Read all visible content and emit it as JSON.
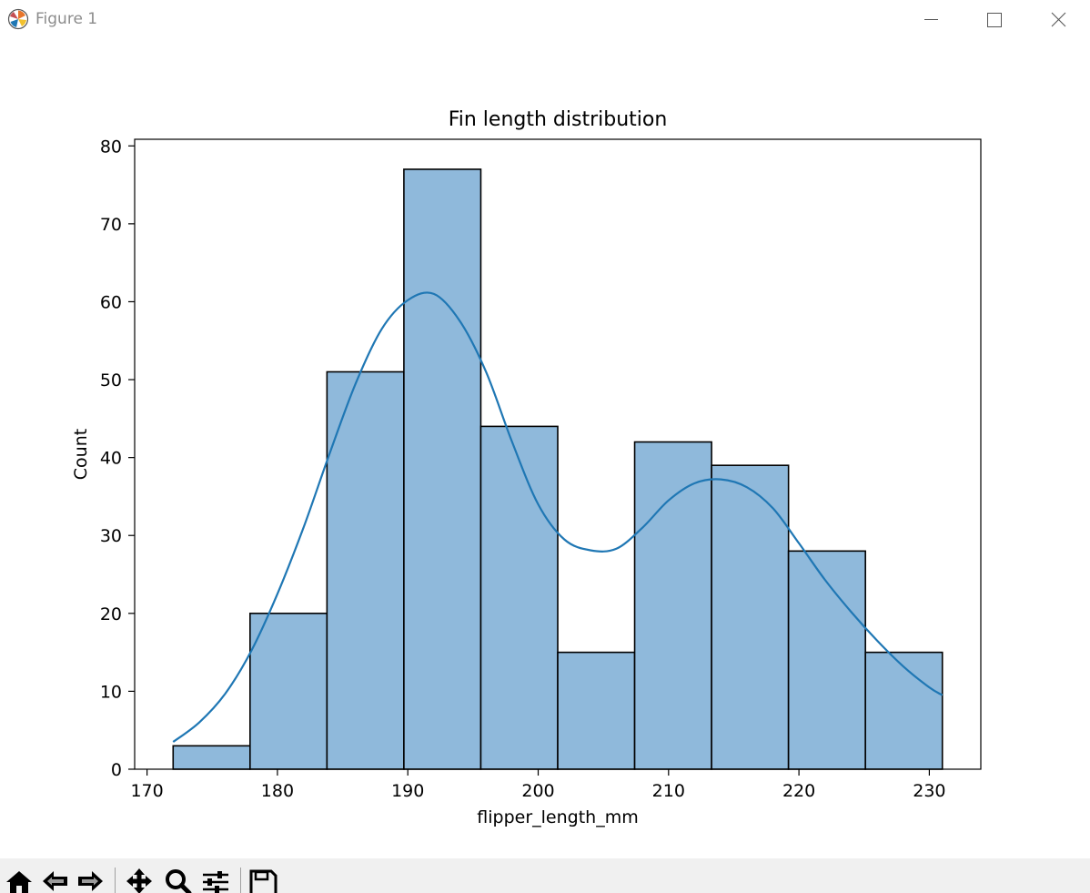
{
  "window": {
    "title": "Figure 1",
    "icon": "matplotlib-icon",
    "controls": [
      "minimize-icon",
      "maximize-icon",
      "close-icon"
    ]
  },
  "toolbar": {
    "tools": [
      "home-icon",
      "back-arrow-icon",
      "forward-arrow-icon",
      "pan-icon",
      "zoom-icon",
      "configure-subplots-icon",
      "save-icon"
    ]
  },
  "chart_data": {
    "type": "bar",
    "title": "Fin length distribution",
    "xlabel": "flipper_length_mm",
    "ylabel": "Count",
    "xlim": [
      169.05,
      233.95
    ],
    "ylim": [
      0,
      80.85
    ],
    "xticks": [
      170,
      180,
      190,
      200,
      210,
      220,
      230
    ],
    "yticks": [
      0,
      10,
      20,
      30,
      40,
      50,
      60,
      70,
      80
    ],
    "bin_edges": [
      172,
      177.9,
      183.8,
      189.7,
      195.6,
      201.5,
      207.4,
      213.3,
      219.2,
      225.1,
      231
    ],
    "counts": [
      3,
      20,
      51,
      77,
      44,
      15,
      42,
      39,
      28,
      15
    ],
    "bar_color": "#8fb9db",
    "edge_color": "#000000",
    "kde": {
      "color": "#1f77b4",
      "x": [
        172,
        174,
        176,
        178,
        180,
        182,
        184,
        186,
        188,
        190,
        192,
        194,
        196,
        198,
        200,
        202,
        204,
        206,
        208,
        210,
        212,
        214,
        216,
        218,
        220,
        222,
        224,
        226,
        228,
        230,
        231
      ],
      "y": [
        3.5,
        6.0,
        9.7,
        15.2,
        22.5,
        31.0,
        40.5,
        49.5,
        56.5,
        60.2,
        61.0,
        57.5,
        51.0,
        42.0,
        34.0,
        29.5,
        28.1,
        28.3,
        31.0,
        34.5,
        36.7,
        37.2,
        36.2,
        33.5,
        29.0,
        24.3,
        20.2,
        16.5,
        13.2,
        10.5,
        9.5
      ]
    },
    "grid": false,
    "legend": "none"
  }
}
